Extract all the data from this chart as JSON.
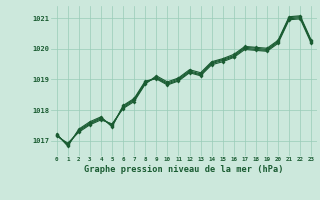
{
  "title": "Graphe pression niveau de la mer (hPa)",
  "bg_color": "#cce8dc",
  "grid_color": "#99ccb8",
  "line_color": "#1a5c32",
  "xlim": [
    -0.5,
    23.5
  ],
  "ylim": [
    1016.5,
    1021.4
  ],
  "yticks": [
    1017,
    1018,
    1019,
    1020,
    1021
  ],
  "xticks": [
    0,
    1,
    2,
    3,
    4,
    5,
    6,
    7,
    8,
    9,
    10,
    11,
    12,
    13,
    14,
    15,
    16,
    17,
    18,
    19,
    20,
    21,
    22,
    23
  ],
  "series": [
    [
      1017.15,
      1016.92,
      1017.28,
      1017.52,
      1017.68,
      1017.55,
      1018.05,
      1018.28,
      1018.85,
      1019.12,
      1018.92,
      1019.05,
      1019.32,
      1019.22,
      1019.58,
      1019.68,
      1019.82,
      1020.08,
      1020.05,
      1020.02,
      1020.28,
      1021.05,
      1021.08,
      1020.28
    ],
    [
      1017.18,
      1016.88,
      1017.32,
      1017.55,
      1017.72,
      1017.52,
      1018.08,
      1018.32,
      1018.88,
      1019.08,
      1018.88,
      1019.02,
      1019.28,
      1019.18,
      1019.55,
      1019.65,
      1019.78,
      1020.05,
      1020.02,
      1019.98,
      1020.25,
      1021.02,
      1021.05,
      1020.25
    ],
    [
      1017.2,
      1016.85,
      1017.35,
      1017.58,
      1017.75,
      1017.48,
      1018.12,
      1018.35,
      1018.92,
      1019.05,
      1018.85,
      1018.98,
      1019.25,
      1019.15,
      1019.52,
      1019.62,
      1019.75,
      1020.02,
      1019.98,
      1019.95,
      1020.22,
      1020.98,
      1021.02,
      1020.22
    ],
    [
      1017.22,
      1016.82,
      1017.38,
      1017.62,
      1017.78,
      1017.45,
      1018.15,
      1018.38,
      1018.95,
      1019.02,
      1018.82,
      1018.95,
      1019.22,
      1019.12,
      1019.48,
      1019.58,
      1019.72,
      1019.98,
      1019.95,
      1019.92,
      1020.18,
      1020.95,
      1020.98,
      1020.18
    ]
  ]
}
